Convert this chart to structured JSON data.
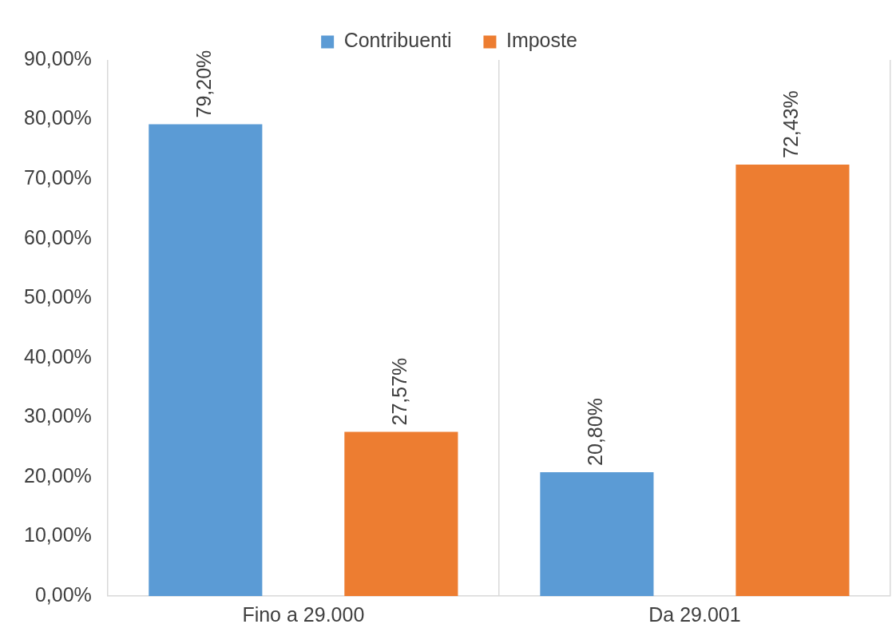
{
  "chart_data": {
    "type": "bar",
    "categories": [
      "Fino a 29.000",
      "Da 29.001"
    ],
    "series": [
      {
        "name": "Contribuenti",
        "color": "#5b9bd5",
        "values": [
          79.2,
          20.8
        ],
        "value_labels": [
          "79,20%",
          "20,80%"
        ]
      },
      {
        "name": "Imposte",
        "color": "#ed7d31",
        "values": [
          27.57,
          72.43
        ],
        "value_labels": [
          "27,57%",
          "72,43%"
        ]
      }
    ],
    "ylim": [
      0,
      90
    ],
    "yticks": [
      {
        "value": 0,
        "label": "0,00%"
      },
      {
        "value": 10,
        "label": "10,00%"
      },
      {
        "value": 20,
        "label": "20,00%"
      },
      {
        "value": 30,
        "label": "30,00%"
      },
      {
        "value": 40,
        "label": "40,00%"
      },
      {
        "value": 50,
        "label": "50,00%"
      },
      {
        "value": 60,
        "label": "60,00%"
      },
      {
        "value": 70,
        "label": "70,00%"
      },
      {
        "value": 80,
        "label": "80,00%"
      },
      {
        "value": 90,
        "label": "90,00%"
      }
    ],
    "grid": "x",
    "legend": "top"
  }
}
